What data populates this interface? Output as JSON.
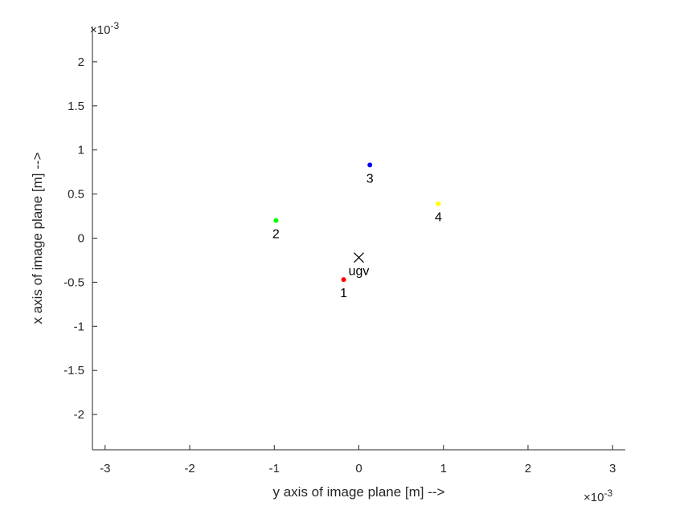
{
  "chart_data": {
    "type": "scatter",
    "title": "",
    "xlabel": "y axis of image plane [m] -->",
    "ylabel": "x axis of image plane [m] -->",
    "x_exponent": "×10",
    "x_exponent_power": "-3",
    "y_exponent": "×10",
    "y_exponent_power": "-3",
    "xlim": [
      -3.15,
      3.15
    ],
    "ylim": [
      -2.4,
      2.4
    ],
    "xticks": [
      -3,
      -2,
      -1,
      0,
      1,
      2,
      3
    ],
    "xtick_labels": [
      "-3",
      "-2",
      "-1",
      "0",
      "1",
      "2",
      "3"
    ],
    "yticks": [
      -2,
      -1.5,
      -1,
      -0.5,
      0,
      0.5,
      1,
      1.5,
      2
    ],
    "ytick_labels": [
      "-2",
      "-1.5",
      "-1",
      "-0.5",
      "0",
      "0.5",
      "1",
      "1.5",
      "2"
    ],
    "grid": false,
    "points": [
      {
        "label": "1",
        "x": -0.18,
        "y": -0.47,
        "color": "#ff0000",
        "marker": "dot"
      },
      {
        "label": "2",
        "x": -0.98,
        "y": 0.2,
        "color": "#00ff00",
        "marker": "dot"
      },
      {
        "label": "3",
        "x": 0.13,
        "y": 0.83,
        "color": "#0000ff",
        "marker": "dot"
      },
      {
        "label": "4",
        "x": 0.94,
        "y": 0.39,
        "color": "#ffff00",
        "marker": "dot"
      },
      {
        "label": "ugv",
        "x": 0.0,
        "y": -0.22,
        "color": "#000000",
        "marker": "x"
      }
    ]
  }
}
